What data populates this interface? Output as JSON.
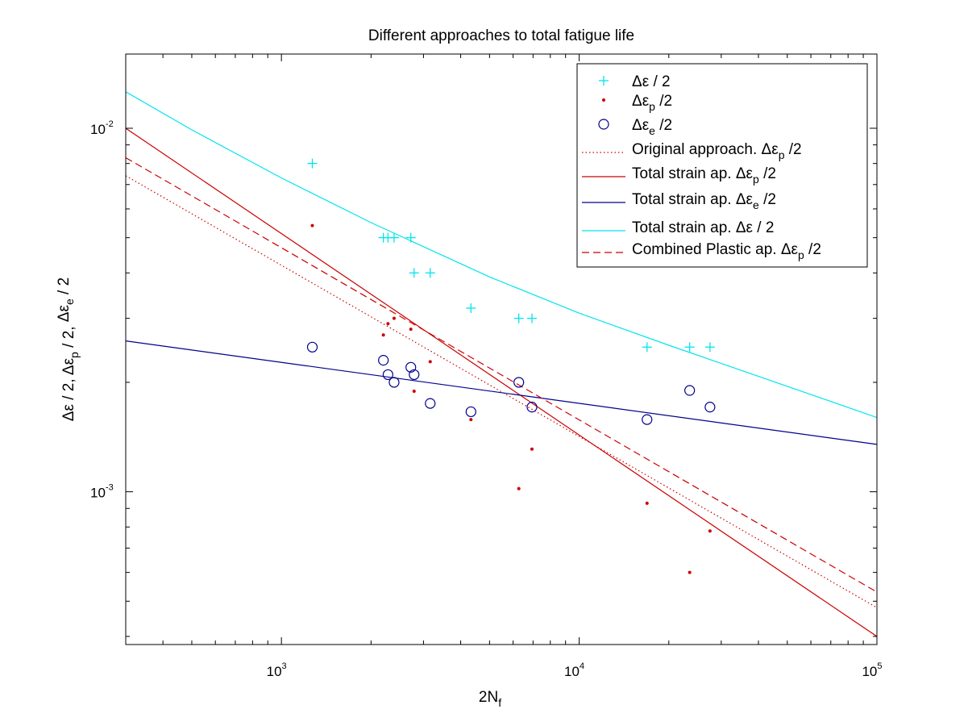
{
  "chart_data": {
    "type": "scatter",
    "title": "Different approaches to total fatigue life",
    "xlabel": {
      "main": "2N",
      "sub": "f"
    },
    "ylabel": [
      {
        "main": "Δε / 2,",
        "sub": ""
      },
      {
        "main": "Δε",
        "sub": "p",
        "rest": " / 2,"
      },
      {
        "main": "Δε",
        "sub": "e",
        "rest": " / 2"
      }
    ],
    "xscale": "log",
    "yscale": "log",
    "xlim": [
      300,
      100000
    ],
    "ylim": [
      0.00038,
      0.016
    ],
    "x_tick_values": [
      1000,
      10000,
      100000
    ],
    "x_tick_labels": [
      {
        "base": "10",
        "exp": "3"
      },
      {
        "base": "10",
        "exp": "4"
      },
      {
        "base": "10",
        "exp": "5"
      }
    ],
    "y_tick_values": [
      0.001,
      0.01
    ],
    "y_tick_labels": [
      {
        "base": "10",
        "exp": "-3"
      },
      {
        "base": "10",
        "exp": "-2"
      }
    ],
    "grid": false,
    "legend_position": "top-right",
    "legend": [
      {
        "text": "Δε / 2",
        "sub": "",
        "rest": "",
        "marker": "plus",
        "color": "#00e5ee"
      },
      {
        "text": "Δε",
        "sub": "p",
        "rest": " /2",
        "marker": "dot",
        "color": "#cc0000"
      },
      {
        "text": "Δε",
        "sub": "e",
        "rest": " /2",
        "marker": "circle",
        "color": "#00008b"
      },
      {
        "text": "Original approach. Δε",
        "sub": "p",
        "rest": " /2",
        "line": "dotted",
        "color": "#cc0000"
      },
      {
        "text": "Total strain ap. Δε",
        "sub": "p",
        "rest": " /2",
        "line": "solid",
        "color": "#cc0000"
      },
      {
        "text": "Total strain ap. Δε",
        "sub": "e",
        "rest": " /2",
        "line": "solid",
        "color": "#00008b"
      },
      {
        "text": "Total strain ap. Δε / 2",
        "sub": "",
        "rest": "",
        "line": "solid",
        "color": "#00e5ee"
      },
      {
        "text": "Combined Plastic ap. Δε",
        "sub": "p",
        "rest": " /2",
        "line": "dashed",
        "color": "#cc0000"
      }
    ],
    "series": [
      {
        "marker": "plus",
        "color": "#00e5ee",
        "x": [
          1270,
          2200,
          2280,
          2390,
          2720,
          2790,
          3160,
          4330,
          6270,
          6940,
          16900,
          23500,
          27500
        ],
        "y": [
          0.008,
          0.005,
          0.005,
          0.005,
          0.005,
          0.004,
          0.004,
          0.0032,
          0.003,
          0.003,
          0.0025,
          0.0025,
          0.0025
        ]
      },
      {
        "marker": "dot",
        "color": "#cc0000",
        "x": [
          1270,
          2200,
          2280,
          2390,
          2720,
          2790,
          3160,
          4330,
          6270,
          6940,
          16900,
          23500,
          27500
        ],
        "y": [
          0.0054,
          0.0027,
          0.0029,
          0.003,
          0.0028,
          0.00189,
          0.00228,
          0.00158,
          0.00102,
          0.00131,
          0.00093,
          0.0006,
          0.00078
        ]
      },
      {
        "marker": "circle",
        "color": "#00008b",
        "x": [
          1270,
          2200,
          2280,
          2390,
          2720,
          2790,
          3160,
          4330,
          6270,
          6940,
          16900,
          23500,
          27500
        ],
        "y": [
          0.0025,
          0.0023,
          0.0021,
          0.002,
          0.0022,
          0.0021,
          0.00175,
          0.00166,
          0.002,
          0.00171,
          0.00158,
          0.0019,
          0.00171
        ]
      },
      {
        "line": "dotted",
        "color": "#cc0000",
        "x": [
          300,
          100000
        ],
        "y": [
          0.0074,
          0.00048
        ]
      },
      {
        "line": "solid",
        "color": "#cc0000",
        "x": [
          300,
          100000
        ],
        "y": [
          0.01,
          0.0004
        ]
      },
      {
        "line": "solid",
        "color": "#00008b",
        "x": [
          300,
          100000
        ],
        "y": [
          0.0026,
          0.00135
        ]
      },
      {
        "line": "solid",
        "color": "#00e5ee",
        "x": [
          300,
          500,
          1000,
          2000,
          5000,
          10000,
          20000,
          50000,
          100000
        ],
        "y": [
          0.0126,
          0.0099,
          0.0073,
          0.0055,
          0.0039,
          0.0031,
          0.00253,
          0.00195,
          0.0016
        ]
      },
      {
        "line": "dashed",
        "color": "#cc0000",
        "x": [
          300,
          100000
        ],
        "y": [
          0.0083,
          0.00053
        ]
      }
    ]
  }
}
